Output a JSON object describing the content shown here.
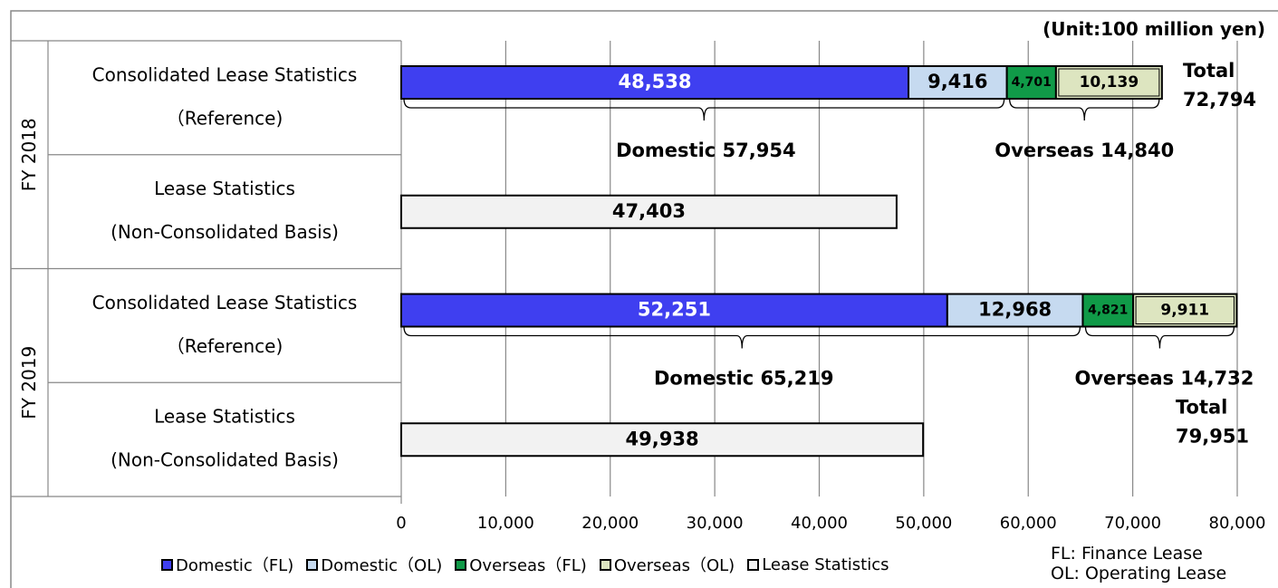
{
  "unit_label": "(Unit:100 million yen)",
  "notes": [
    "FL: Finance Lease",
    "OL: Operating Lease"
  ],
  "colors": {
    "domestic_fl": "#3f3ff0",
    "domestic_ol": "#c6daf0",
    "overseas_fl": "#109a48",
    "overseas_ol": "#dde5c0",
    "lease_statistics": "#f2f2f2"
  },
  "chart_data": {
    "type": "bar",
    "orientation": "horizontal",
    "stacked": true,
    "xlim": [
      0,
      80000
    ],
    "xticks": [
      0,
      10000,
      20000,
      30000,
      40000,
      50000,
      60000,
      70000,
      80000
    ],
    "xtick_labels": [
      "0",
      "10,000",
      "20,000",
      "30,000",
      "40,000",
      "50,000",
      "60,000",
      "70,000",
      "80,000"
    ],
    "grid": true,
    "legend_position": "bottom",
    "legend": [
      "Domestic（FL)",
      "Domestic（OL)",
      "Overseas（FL)",
      "Overseas（OL)",
      "Lease Statistics"
    ],
    "groups": [
      {
        "name": "FY 2018",
        "rows": [
          {
            "label_line1": "Consolidated Lease Statistics",
            "label_line2": "（Reference)",
            "segments": [
              {
                "series": "Domestic（FL)",
                "value": 48538,
                "label": "48,538"
              },
              {
                "series": "Domestic（OL)",
                "value": 9416,
                "label": "9,416"
              },
              {
                "series": "Overseas（FL)",
                "value": 4701,
                "label": "4,701"
              },
              {
                "series": "Overseas（OL)",
                "value": 10139,
                "label": "10,139"
              }
            ],
            "domestic_total_label": "Domestic 57,954",
            "overseas_total_label": "Overseas 14,840",
            "total_label_line1": "Total",
            "total_label_line2": "72,794"
          },
          {
            "label_line1": "Lease Statistics",
            "label_line2": "(Non-Consolidated Basis)",
            "segments": [
              {
                "series": "Lease Statistics",
                "value": 47403,
                "label": "47,403"
              }
            ]
          }
        ]
      },
      {
        "name": "FY 2019",
        "rows": [
          {
            "label_line1": "Consolidated Lease Statistics",
            "label_line2": "（Reference)",
            "segments": [
              {
                "series": "Domestic（FL)",
                "value": 52251,
                "label": "52,251"
              },
              {
                "series": "Domestic（OL)",
                "value": 12968,
                "label": "12,968"
              },
              {
                "series": "Overseas（FL)",
                "value": 4821,
                "label": "4,821"
              },
              {
                "series": "Overseas（OL)",
                "value": 9911,
                "label": "9,911"
              }
            ],
            "domestic_total_label": "Domestic 65,219",
            "overseas_total_label": "Overseas 14,732",
            "total_label_line1": "Total",
            "total_label_line2": "79,951"
          },
          {
            "label_line1": "Lease Statistics",
            "label_line2": "(Non-Consolidated Basis)",
            "segments": [
              {
                "series": "Lease Statistics",
                "value": 49938,
                "label": "49,938"
              }
            ]
          }
        ]
      }
    ]
  }
}
